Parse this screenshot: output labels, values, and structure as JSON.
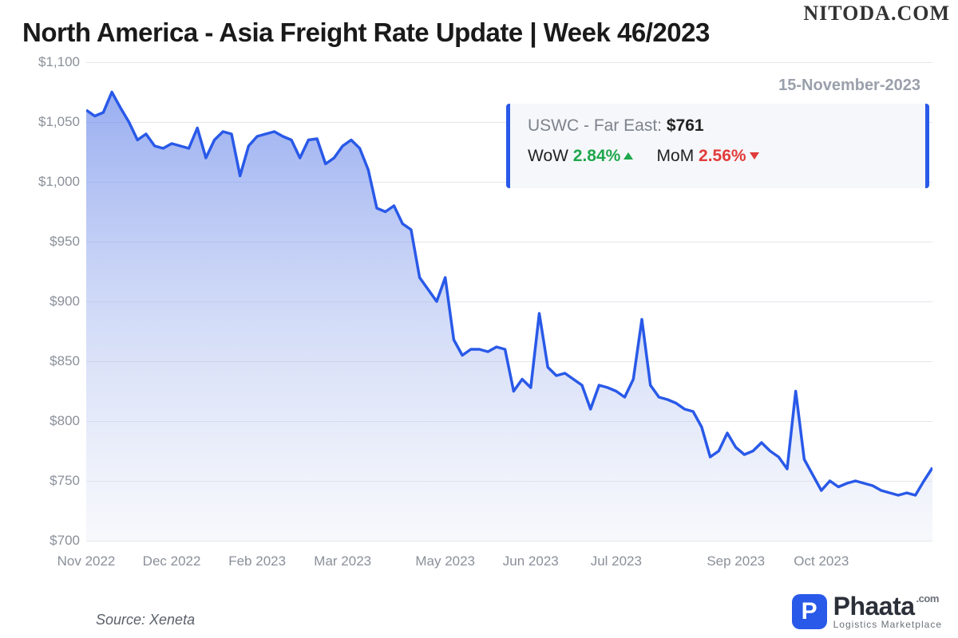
{
  "watermark": "NITODA.COM",
  "title": "North America - Asia Freight Rate Update | Week 46/2023",
  "source": "Source: Xeneta",
  "logo": {
    "badge": "P",
    "name": "Phaata",
    "domain": ".com",
    "tagline": "Logistics Marketplace"
  },
  "callout": {
    "date": "15-November-2023",
    "route_prefix": "USWC - Far East: ",
    "route_value": "$761",
    "wow_label": "WoW ",
    "wow_value": "2.84%",
    "wow_dir": "up",
    "mom_label": "MoM ",
    "mom_value": "2.56%",
    "mom_dir": "down"
  },
  "chart": {
    "type": "area",
    "ylim": [
      700,
      1100
    ],
    "ytick_step": 50,
    "y_ticks": [
      1100,
      1050,
      1000,
      950,
      900,
      850,
      800,
      750,
      700
    ],
    "y_tick_labels": [
      "$1,100",
      "$1,050",
      "$1,000",
      "$950",
      "$900",
      "$850",
      "$800",
      "$750",
      "$700"
    ],
    "x_ticks": [
      0,
      10,
      20,
      30,
      42,
      52,
      62,
      76,
      86
    ],
    "x_tick_labels": [
      "Nov 2022",
      "Dec 2022",
      "Feb 2023",
      "Mar 2023",
      "May 2023",
      "Jun 2023",
      "Jul 2023",
      "Sep 2023",
      "Oct 2023"
    ],
    "x_count": 100,
    "line_color": "#2959e8",
    "line_width": 3.5,
    "area_top_color": "#5c7de8",
    "area_top_opacity": 0.62,
    "area_bottom_color": "#e8ecf6",
    "area_bottom_opacity": 0.35,
    "grid_color": "#e4e6ea",
    "bg_color": "#ffffff",
    "label_color": "#8a8f99",
    "label_fontsize": 17,
    "values": [
      1060,
      1055,
      1058,
      1075,
      1062,
      1050,
      1035,
      1040,
      1030,
      1028,
      1032,
      1030,
      1028,
      1045,
      1020,
      1035,
      1042,
      1040,
      1005,
      1030,
      1038,
      1040,
      1042,
      1038,
      1035,
      1020,
      1035,
      1036,
      1015,
      1020,
      1030,
      1035,
      1028,
      1010,
      978,
      975,
      980,
      965,
      960,
      920,
      910,
      900,
      920,
      868,
      855,
      860,
      860,
      858,
      862,
      860,
      825,
      835,
      828,
      890,
      845,
      838,
      840,
      835,
      830,
      810,
      830,
      828,
      825,
      820,
      835,
      885,
      830,
      820,
      818,
      815,
      810,
      808,
      795,
      770,
      775,
      790,
      778,
      772,
      775,
      782,
      775,
      770,
      760,
      825,
      768,
      755,
      742,
      750,
      745,
      748,
      750,
      748,
      746,
      742,
      740,
      738,
      740,
      738,
      750,
      761
    ]
  }
}
